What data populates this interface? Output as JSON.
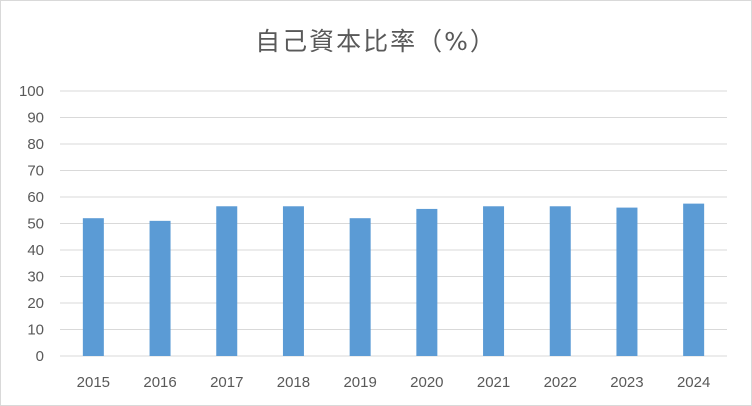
{
  "chart_data": {
    "type": "bar",
    "title": "自己資本比率（%）",
    "xlabel": "",
    "ylabel": "",
    "categories": [
      "2015",
      "2016",
      "2017",
      "2018",
      "2019",
      "2020",
      "2021",
      "2022",
      "2023",
      "2024"
    ],
    "values": [
      52,
      51,
      56.5,
      56.5,
      52,
      55.5,
      56.5,
      56.5,
      56,
      57.5
    ],
    "ylim": [
      0,
      100
    ],
    "yticks": [
      "0",
      "10",
      "20",
      "30",
      "40",
      "50",
      "60",
      "70",
      "80",
      "90",
      "100"
    ],
    "grid": true,
    "legend": "none",
    "colors": {
      "bar": "#5b9bd5",
      "grid": "#d9d9d9",
      "text": "#595959"
    }
  }
}
